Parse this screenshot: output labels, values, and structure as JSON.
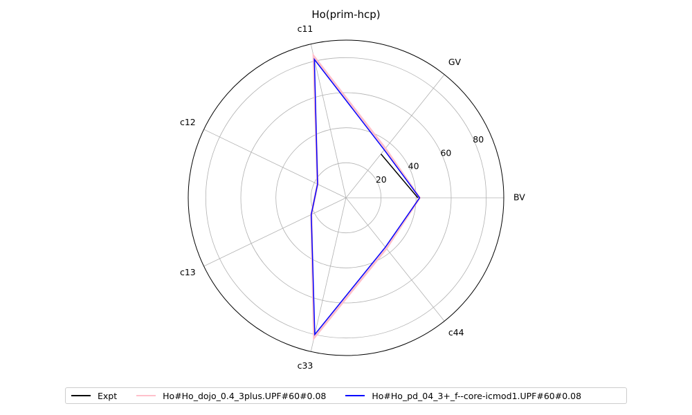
{
  "chart_data": {
    "type": "radar",
    "title": "Ho(prim-hcp)",
    "axes": [
      "BV",
      "GV",
      "c11",
      "c12",
      "c13",
      "c33",
      "c44"
    ],
    "radial_ticks": [
      20,
      40,
      60,
      80
    ],
    "rlim": [
      0,
      90
    ],
    "grid": true,
    "legend_position": "bottom",
    "series": [
      {
        "name": "Expt",
        "color": "#000000",
        "values": [
          41,
          32,
          null,
          null,
          null,
          null,
          null
        ]
      },
      {
        "name": "Ho#Ho_dojo_0.4_3plus.UPF#60#0.08",
        "color": "#ffc0cb",
        "values": [
          42,
          36,
          83,
          18,
          22,
          82,
          37
        ]
      },
      {
        "name": "Ho#Ho_pd_04_3+_f--core-icmod1.UPF#60#0.08",
        "color": "#0000ff",
        "values": [
          42,
          35,
          81,
          18,
          22,
          80,
          36
        ]
      }
    ]
  }
}
